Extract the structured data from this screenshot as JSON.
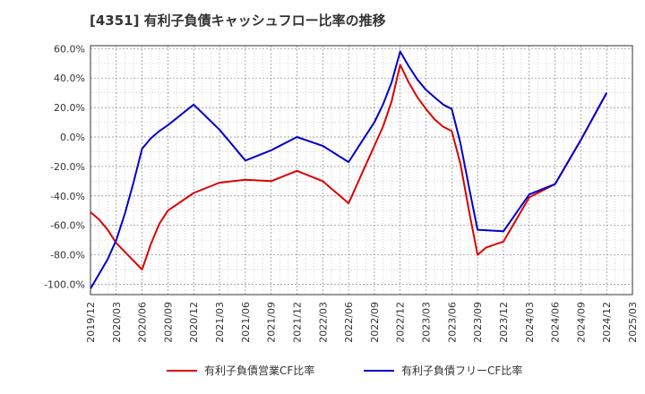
{
  "chart_data": {
    "type": "line",
    "title": "[4351]  有利子負債キャッシュフロー比率の推移",
    "xlabel": "",
    "ylabel": "",
    "x_ticks": [
      "2019/12",
      "2020/03",
      "2020/06",
      "2020/09",
      "2020/12",
      "2021/03",
      "2021/06",
      "2021/09",
      "2021/12",
      "2022/03",
      "2022/06",
      "2022/09",
      "2022/12",
      "2023/03",
      "2023/06",
      "2023/09",
      "2023/12",
      "2024/03",
      "2024/06",
      "2024/09",
      "2024/12",
      "2025/03"
    ],
    "ylim": [
      -107,
      62
    ],
    "y_ticks": [
      60,
      40,
      20,
      0,
      -20,
      -40,
      -60,
      -80,
      -100
    ],
    "y_tick_labels": [
      "60.0%",
      "40.0%",
      "20.0%",
      "0.0%",
      "-20.0%",
      "-40.0%",
      "-60.0%",
      "-80.0%",
      "-100.0%"
    ],
    "grid": true,
    "legend_position": "bottom",
    "series": [
      {
        "name": "有利子負債営業CF比率",
        "color": "#dd0000",
        "points": [
          [
            "2019/12",
            -51
          ],
          [
            "2020/01",
            -56
          ],
          [
            "2020/02",
            -63
          ],
          [
            "2020/03",
            -72
          ],
          [
            "2020/04",
            -78
          ],
          [
            "2020/05",
            -84
          ],
          [
            "2020/06",
            -90
          ],
          [
            "2020/07",
            -73
          ],
          [
            "2020/08",
            -59
          ],
          [
            "2020/09",
            -50
          ],
          [
            "2020/12",
            -38
          ],
          [
            "2021/03",
            -31
          ],
          [
            "2021/06",
            -29
          ],
          [
            "2021/09",
            -30
          ],
          [
            "2021/12",
            -23
          ],
          [
            "2022/03",
            -30
          ],
          [
            "2022/04",
            -35
          ],
          [
            "2022/05",
            -40
          ],
          [
            "2022/06",
            -45
          ],
          [
            "2022/07",
            -32
          ],
          [
            "2022/08",
            -19
          ],
          [
            "2022/09",
            -6
          ],
          [
            "2022/10",
            7
          ],
          [
            "2022/11",
            24
          ],
          [
            "2022/12",
            49
          ],
          [
            "2023/01",
            37
          ],
          [
            "2023/02",
            27
          ],
          [
            "2023/03",
            19
          ],
          [
            "2023/04",
            12
          ],
          [
            "2023/05",
            7
          ],
          [
            "2023/06",
            4
          ],
          [
            "2023/07",
            -18
          ],
          [
            "2023/08",
            -50
          ],
          [
            "2023/09",
            -80
          ],
          [
            "2023/10",
            -75
          ],
          [
            "2023/11",
            -73
          ],
          [
            "2023/12",
            -71
          ],
          [
            "2024/03",
            -41
          ],
          [
            "2024/06",
            -32
          ],
          [
            "2024/09",
            -2
          ],
          [
            "2024/12",
            30
          ]
        ]
      },
      {
        "name": "有利子負債フリーCF比率",
        "color": "#0000cc",
        "points": [
          [
            "2019/12",
            -103
          ],
          [
            "2020/01",
            -93
          ],
          [
            "2020/02",
            -83
          ],
          [
            "2020/03",
            -70
          ],
          [
            "2020/04",
            -52
          ],
          [
            "2020/05",
            -31
          ],
          [
            "2020/06",
            -8
          ],
          [
            "2020/07",
            -1
          ],
          [
            "2020/08",
            4
          ],
          [
            "2020/09",
            8
          ],
          [
            "2020/12",
            22
          ],
          [
            "2021/03",
            5
          ],
          [
            "2021/04",
            -2
          ],
          [
            "2021/05",
            -9
          ],
          [
            "2021/06",
            -16
          ],
          [
            "2021/09",
            -9
          ],
          [
            "2021/12",
            0
          ],
          [
            "2022/03",
            -6
          ],
          [
            "2022/06",
            -17
          ],
          [
            "2022/07",
            -8
          ],
          [
            "2022/08",
            1
          ],
          [
            "2022/09",
            10
          ],
          [
            "2022/10",
            22
          ],
          [
            "2022/11",
            37
          ],
          [
            "2022/12",
            58
          ],
          [
            "2023/01",
            48
          ],
          [
            "2023/02",
            39
          ],
          [
            "2023/03",
            32
          ],
          [
            "2023/04",
            27
          ],
          [
            "2023/05",
            22
          ],
          [
            "2023/06",
            19
          ],
          [
            "2023/07",
            -4
          ],
          [
            "2023/08",
            -34
          ],
          [
            "2023/09",
            -63
          ],
          [
            "2023/12",
            -64
          ],
          [
            "2024/03",
            -39
          ],
          [
            "2024/06",
            -32
          ],
          [
            "2024/09",
            -2
          ],
          [
            "2024/12",
            30
          ]
        ]
      }
    ]
  }
}
